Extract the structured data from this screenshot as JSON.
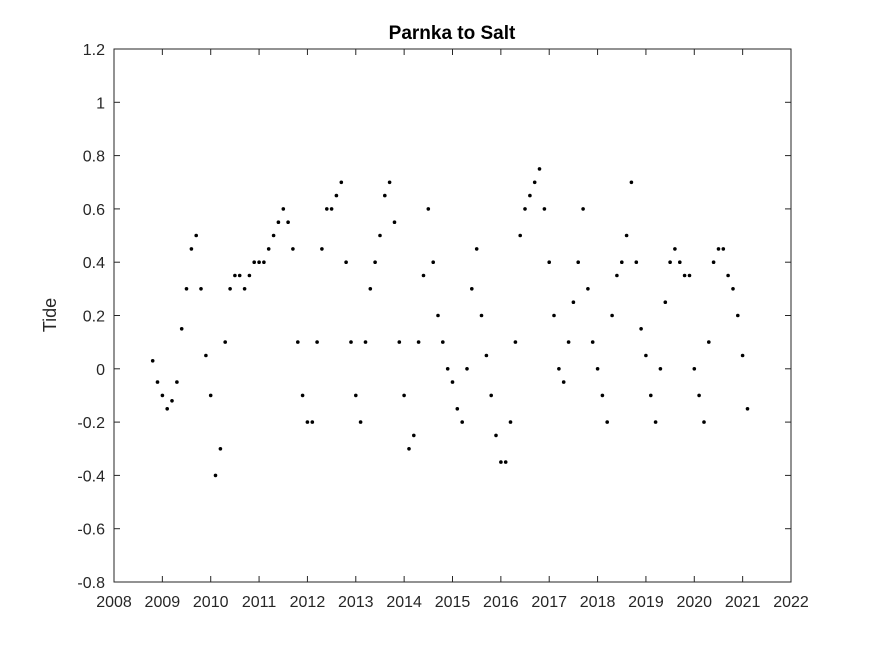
{
  "chart_data": {
    "type": "scatter",
    "title": "Parnka to Salt",
    "xlabel": "",
    "ylabel": "Tide",
    "xlim": [
      2008,
      2022
    ],
    "ylim": [
      -0.8,
      1.2
    ],
    "xticks": [
      "2008",
      "2009",
      "2010",
      "2011",
      "2012",
      "2013",
      "2014",
      "2015",
      "2016",
      "2017",
      "2018",
      "2019",
      "2020",
      "2021",
      "2022"
    ],
    "yticks": [
      "-0.8",
      "-0.6",
      "-0.4",
      "-0.2",
      "0",
      "0.2",
      "0.4",
      "0.6",
      "0.8",
      "1",
      "1.2"
    ],
    "grid": false,
    "legend": "none",
    "marker_color": "#000000",
    "x": [
      2008.8,
      2008.9,
      2009.0,
      2009.1,
      2009.2,
      2009.3,
      2009.4,
      2009.5,
      2009.6,
      2009.7,
      2009.8,
      2009.9,
      2010.0,
      2010.1,
      2010.2,
      2010.3,
      2010.4,
      2010.5,
      2010.6,
      2010.7,
      2010.8,
      2010.9,
      2011.0,
      2011.1,
      2011.2,
      2011.3,
      2011.4,
      2011.5,
      2011.6,
      2011.7,
      2011.8,
      2011.9,
      2012.0,
      2012.1,
      2012.2,
      2012.3,
      2012.4,
      2012.5,
      2012.6,
      2012.7,
      2012.8,
      2012.9,
      2013.0,
      2013.1,
      2013.2,
      2013.3,
      2013.4,
      2013.5,
      2013.6,
      2013.7,
      2013.8,
      2013.9,
      2014.0,
      2014.1,
      2014.2,
      2014.3,
      2014.4,
      2014.5,
      2014.6,
      2014.7,
      2014.8,
      2014.9,
      2015.0,
      2015.1,
      2015.2,
      2015.3,
      2015.4,
      2015.5,
      2015.6,
      2015.7,
      2015.8,
      2015.9,
      2016.0,
      2016.1,
      2016.2,
      2016.3,
      2016.4,
      2016.5,
      2016.6,
      2016.7,
      2016.8,
      2016.9,
      2017.0,
      2017.1,
      2017.2,
      2017.3,
      2017.4,
      2017.5,
      2017.6,
      2017.7,
      2017.8,
      2017.9,
      2018.0,
      2018.1,
      2018.2,
      2018.3,
      2018.4,
      2018.5,
      2018.6,
      2018.7,
      2018.8,
      2018.9,
      2019.0,
      2019.1,
      2019.2,
      2019.3,
      2019.4,
      2019.5,
      2019.6,
      2019.7,
      2019.8,
      2019.9,
      2020.0,
      2020.1,
      2020.2,
      2020.3,
      2020.4,
      2020.5,
      2020.6,
      2020.7,
      2020.8,
      2020.9,
      2021.0,
      2021.1
    ],
    "y": [
      0.03,
      -0.05,
      -0.1,
      -0.15,
      -0.12,
      -0.05,
      0.15,
      0.3,
      0.45,
      0.5,
      0.3,
      0.05,
      -0.1,
      -0.4,
      -0.3,
      0.1,
      0.3,
      0.35,
      0.35,
      0.3,
      0.35,
      0.4,
      0.4,
      0.4,
      0.45,
      0.5,
      0.55,
      0.6,
      0.55,
      0.45,
      0.1,
      -0.1,
      -0.2,
      -0.2,
      0.1,
      0.45,
      0.6,
      0.6,
      0.65,
      0.7,
      0.4,
      0.1,
      -0.1,
      -0.2,
      0.1,
      0.3,
      0.4,
      0.5,
      0.65,
      0.7,
      0.55,
      0.1,
      -0.1,
      -0.3,
      -0.25,
      0.1,
      0.35,
      0.6,
      0.4,
      0.2,
      0.1,
      0.0,
      -0.05,
      -0.15,
      -0.2,
      0.0,
      0.3,
      0.45,
      0.2,
      0.05,
      -0.1,
      -0.25,
      -0.35,
      -0.35,
      -0.2,
      0.1,
      0.5,
      0.6,
      0.65,
      0.7,
      0.75,
      0.6,
      0.4,
      0.2,
      0.0,
      -0.05,
      0.1,
      0.25,
      0.4,
      0.6,
      0.3,
      0.1,
      0.0,
      -0.1,
      -0.2,
      0.2,
      0.35,
      0.4,
      0.5,
      0.7,
      0.4,
      0.15,
      0.05,
      -0.1,
      -0.2,
      0.0,
      0.25,
      0.4,
      0.45,
      0.4,
      0.35,
      0.35,
      0.0,
      -0.1,
      -0.2,
      0.1,
      0.4,
      0.45,
      0.45,
      0.35,
      0.3,
      0.2,
      0.05,
      -0.15
    ]
  }
}
